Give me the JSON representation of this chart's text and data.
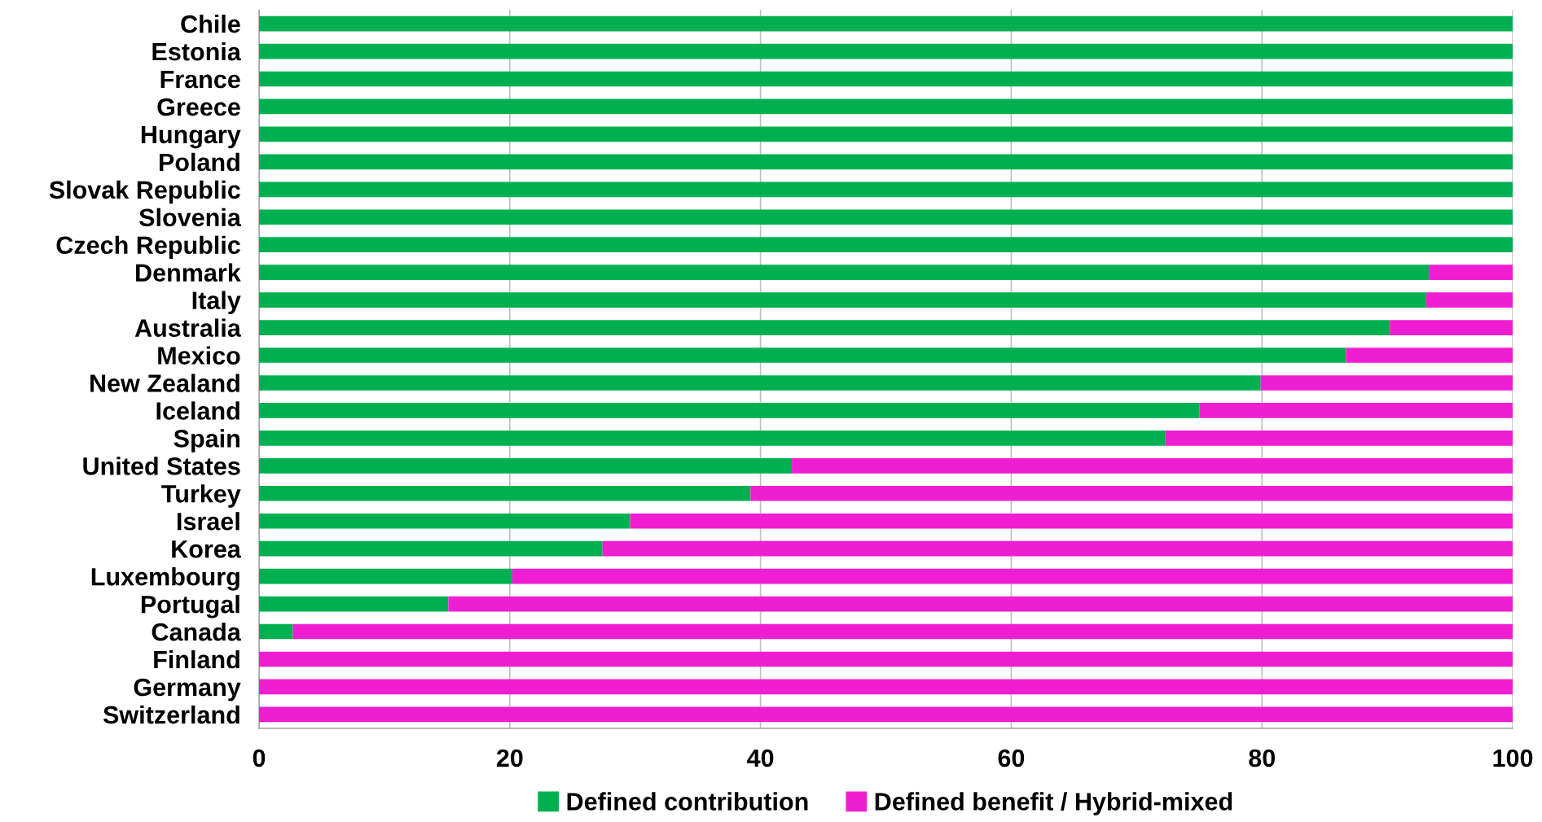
{
  "chart_data": {
    "type": "bar",
    "orientation": "horizontal",
    "stacked": true,
    "categories": [
      "Chile",
      "Estonia",
      "France",
      "Greece",
      "Hungary",
      "Poland",
      "Slovak Republic",
      "Slovenia",
      "Czech Republic",
      "Denmark",
      "Italy",
      "Australia",
      "Mexico",
      "New Zealand",
      "Iceland",
      "Spain",
      "United States",
      "Turkey",
      "Israel",
      "Korea",
      "Luxembourg",
      "Portugal",
      "Canada",
      "Finland",
      "Germany",
      "Switzerland"
    ],
    "series": [
      {
        "name": "Defined contribution",
        "color": "#00b050",
        "values": [
          100,
          100,
          100,
          100,
          100,
          100,
          100,
          100,
          100,
          93.3,
          93.1,
          90.2,
          86.7,
          79.9,
          75.0,
          72.3,
          42.5,
          39.2,
          29.6,
          27.4,
          20.2,
          15.1,
          2.7,
          0,
          0,
          0
        ]
      },
      {
        "name": "Defined benefit / Hybrid-mixed",
        "color": "#f01ed2",
        "values": [
          0,
          0,
          0,
          0,
          0,
          0,
          0,
          0,
          0,
          6.7,
          6.9,
          9.8,
          13.3,
          20.1,
          25.0,
          27.7,
          57.5,
          60.8,
          70.4,
          72.6,
          79.8,
          84.9,
          97.3,
          100,
          100,
          100
        ]
      }
    ],
    "xlim": [
      0,
      100
    ],
    "xticks": [
      0,
      20,
      40,
      60,
      80,
      100
    ],
    "grid": "x",
    "legend": "bottom"
  }
}
